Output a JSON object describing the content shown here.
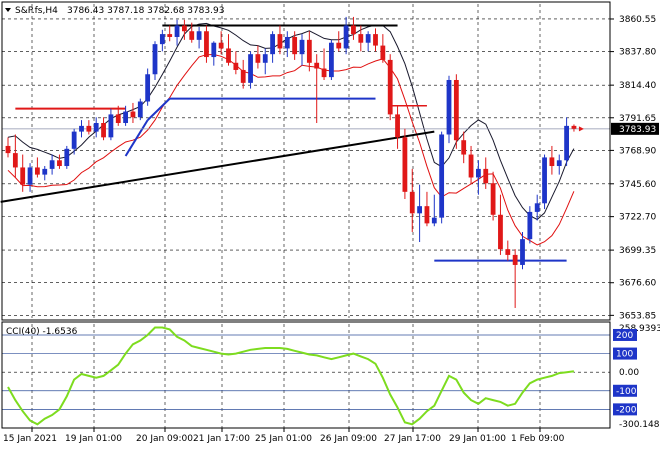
{
  "header": {
    "symbol": "S&P.fs,H4",
    "ohlc": "3786.43 3787.18 3782.68 3783.93"
  },
  "chart_data": [
    {
      "type": "candlestick",
      "symbol": "S&P.fs",
      "timeframe": "H4",
      "y_ticks": [
        3653.85,
        3676.6,
        3699.35,
        3722.7,
        3745.6,
        3768.9,
        3791.65,
        3814.4,
        3837.8,
        3860.55
      ],
      "ylim": [
        3652,
        3871
      ],
      "current_price": 3783.93,
      "x_tick_labels": [
        "15 Jan 2021",
        "19 Jan 01:00",
        "20 Jan 09:00",
        "21 Jan 17:00",
        "25 Jan 01:00",
        "26 Jan 09:00",
        "27 Jan 17:00",
        "29 Jan 01:00",
        "1 Feb 09:00"
      ],
      "candles": [
        [
          3772,
          3778,
          3764,
          3767
        ],
        [
          3767,
          3780,
          3750,
          3757
        ],
        [
          3757,
          3766,
          3740,
          3745
        ],
        [
          3745,
          3760,
          3740,
          3757
        ],
        [
          3757,
          3764,
          3750,
          3752
        ],
        [
          3752,
          3758,
          3748,
          3756
        ],
        [
          3756,
          3766,
          3752,
          3762
        ],
        [
          3762,
          3766,
          3756,
          3758
        ],
        [
          3758,
          3772,
          3756,
          3770
        ],
        [
          3770,
          3784,
          3766,
          3782
        ],
        [
          3782,
          3790,
          3778,
          3786
        ],
        [
          3786,
          3790,
          3780,
          3782
        ],
        [
          3782,
          3792,
          3778,
          3788
        ],
        [
          3788,
          3792,
          3776,
          3778
        ],
        [
          3778,
          3798,
          3776,
          3794
        ],
        [
          3794,
          3800,
          3786,
          3788
        ],
        [
          3788,
          3800,
          3786,
          3796
        ],
        [
          3796,
          3802,
          3788,
          3792
        ],
        [
          3792,
          3805,
          3790,
          3803
        ],
        [
          3803,
          3826,
          3800,
          3822
        ],
        [
          3822,
          3845,
          3818,
          3843
        ],
        [
          3843,
          3853,
          3838,
          3850
        ],
        [
          3850,
          3856,
          3845,
          3848
        ],
        [
          3848,
          3860,
          3842,
          3856
        ],
        [
          3856,
          3860,
          3846,
          3852
        ],
        [
          3852,
          3858,
          3844,
          3846
        ],
        [
          3846,
          3855,
          3840,
          3852
        ],
        [
          3852,
          3856,
          3830,
          3834
        ],
        [
          3834,
          3845,
          3828,
          3844
        ],
        [
          3844,
          3852,
          3836,
          3840
        ],
        [
          3840,
          3850,
          3828,
          3830
        ],
        [
          3830,
          3838,
          3822,
          3825
        ],
        [
          3825,
          3832,
          3812,
          3816
        ],
        [
          3816,
          3838,
          3812,
          3836
        ],
        [
          3836,
          3842,
          3826,
          3830
        ],
        [
          3830,
          3840,
          3822,
          3836
        ],
        [
          3836,
          3852,
          3830,
          3850
        ],
        [
          3850,
          3856,
          3836,
          3840
        ],
        [
          3840,
          3852,
          3834,
          3848
        ],
        [
          3848,
          3852,
          3832,
          3836
        ],
        [
          3836,
          3850,
          3828,
          3846
        ],
        [
          3846,
          3852,
          3824,
          3830
        ],
        [
          3830,
          3836,
          3788,
          3826
        ],
        [
          3826,
          3840,
          3818,
          3820
        ],
        [
          3820,
          3846,
          3818,
          3844
        ],
        [
          3844,
          3852,
          3838,
          3840
        ],
        [
          3840,
          3862,
          3836,
          3856
        ],
        [
          3856,
          3862,
          3846,
          3850
        ],
        [
          3850,
          3856,
          3838,
          3844
        ],
        [
          3844,
          3852,
          3838,
          3850
        ],
        [
          3850,
          3854,
          3838,
          3842
        ],
        [
          3842,
          3850,
          3830,
          3832
        ],
        [
          3832,
          3836,
          3790,
          3794
        ],
        [
          3794,
          3800,
          3770,
          3778
        ],
        [
          3778,
          3784,
          3735,
          3740
        ],
        [
          3740,
          3756,
          3712,
          3725
        ],
        [
          3725,
          3745,
          3705,
          3730
        ],
        [
          3730,
          3740,
          3716,
          3718
        ],
        [
          3718,
          3738,
          3716,
          3722
        ],
        [
          3722,
          3782,
          3718,
          3780
        ],
        [
          3780,
          3821,
          3774,
          3818
        ],
        [
          3818,
          3822,
          3770,
          3776
        ],
        [
          3776,
          3782,
          3760,
          3766
        ],
        [
          3766,
          3772,
          3746,
          3750
        ],
        [
          3750,
          3762,
          3738,
          3756
        ],
        [
          3756,
          3764,
          3742,
          3746
        ],
        [
          3746,
          3754,
          3720,
          3724
        ],
        [
          3724,
          3738,
          3696,
          3700
        ],
        [
          3700,
          3706,
          3692,
          3696
        ],
        [
          3696,
          3700,
          3659,
          3689
        ],
        [
          3689,
          3712,
          3686,
          3707
        ],
        [
          3707,
          3730,
          3704,
          3726
        ],
        [
          3726,
          3738,
          3720,
          3732
        ],
        [
          3732,
          3766,
          3728,
          3764
        ],
        [
          3764,
          3772,
          3752,
          3758
        ],
        [
          3758,
          3766,
          3752,
          3762
        ],
        [
          3762,
          3792,
          3758,
          3786
        ],
        [
          3786,
          3787,
          3782,
          3784
        ]
      ],
      "cci": {
        "label": "CCI(40) -1.6536",
        "y_ticks": [
          258.9393,
          200,
          100,
          0.0,
          -100,
          -200,
          -300.148
        ],
        "tick_labels": [
          "258.9393",
          "200",
          "100",
          "0.00",
          "-100",
          "-200",
          "-300.148"
        ],
        "ylim": [
          -300.148,
          258.9393
        ],
        "values": [
          -80,
          -150,
          -210,
          -260,
          -280,
          -250,
          -230,
          -200,
          -130,
          -40,
          -10,
          -20,
          -30,
          -20,
          10,
          40,
          100,
          150,
          170,
          200,
          240,
          240,
          230,
          190,
          170,
          140,
          130,
          120,
          110,
          100,
          95,
          100,
          110,
          120,
          125,
          130,
          130,
          130,
          125,
          115,
          105,
          95,
          90,
          80,
          70,
          80,
          90,
          100,
          85,
          70,
          45,
          -30,
          -120,
          -190,
          -270,
          -280,
          -250,
          -210,
          -180,
          -100,
          -20,
          -40,
          -110,
          -150,
          -170,
          -140,
          -150,
          -160,
          -180,
          -170,
          -110,
          -60,
          -40,
          -30,
          -20,
          -5,
          0,
          5
        ]
      }
    }
  ]
}
